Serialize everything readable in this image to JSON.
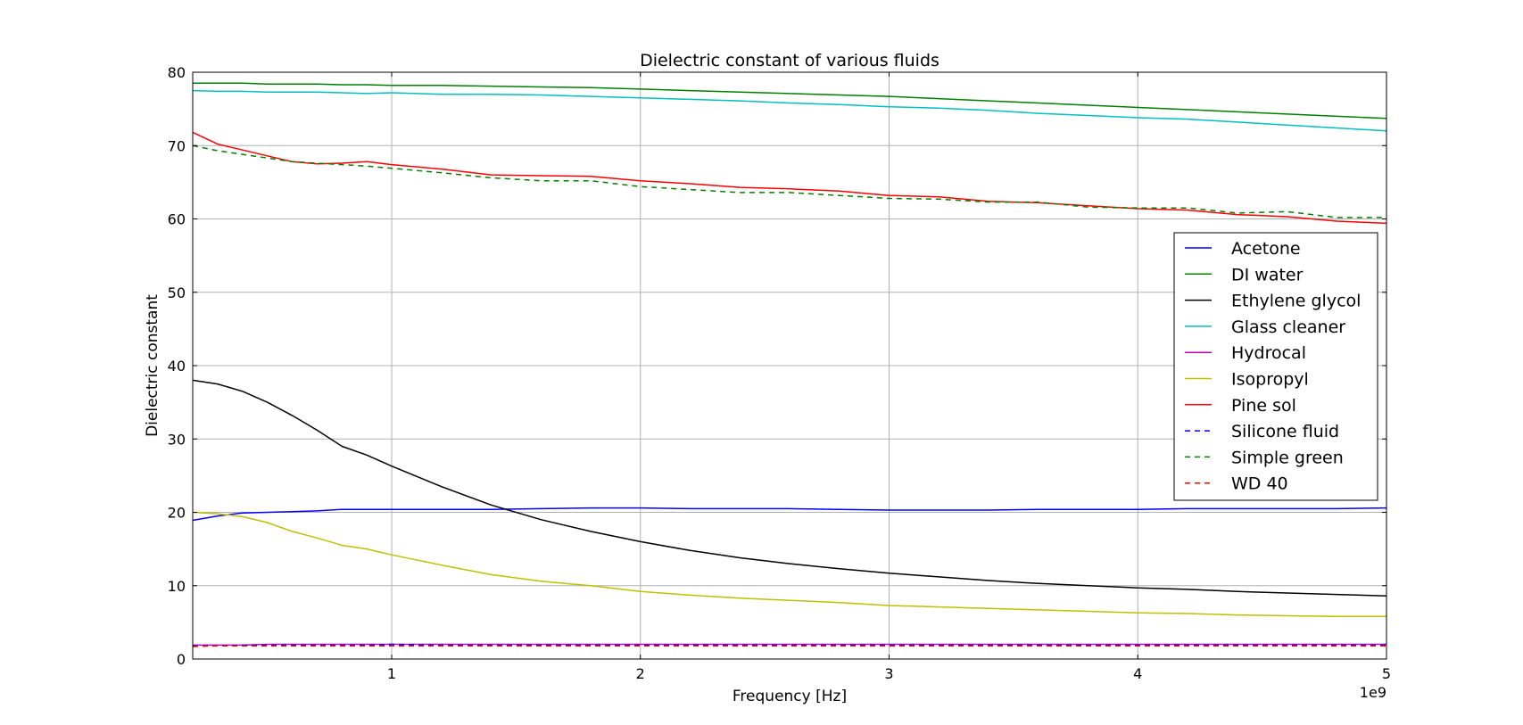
{
  "chart_data": {
    "type": "line",
    "title": "Dielectric constant of various fluids",
    "xlabel": "Frequency [Hz]",
    "ylabel": "Dielectric constant",
    "x_offset_text": "1e9",
    "xlim": [
      0.2,
      5.0
    ],
    "ylim": [
      0,
      80
    ],
    "x_ticks": [
      1,
      2,
      3,
      4,
      5
    ],
    "y_ticks": [
      0,
      10,
      20,
      30,
      40,
      50,
      60,
      70,
      80
    ],
    "grid": true,
    "legend_position": "center-right",
    "x": [
      0.2,
      0.3,
      0.4,
      0.5,
      0.6,
      0.7,
      0.8,
      0.9,
      1.0,
      1.2,
      1.4,
      1.6,
      1.8,
      2.0,
      2.2,
      2.4,
      2.6,
      2.8,
      3.0,
      3.2,
      3.4,
      3.6,
      3.8,
      4.0,
      4.2,
      4.4,
      4.6,
      4.8,
      5.0
    ],
    "series": [
      {
        "name": "Acetone",
        "color": "#0000ff",
        "dash": "solid",
        "values": [
          18.9,
          19.5,
          19.9,
          20.0,
          20.1,
          20.2,
          20.4,
          20.4,
          20.4,
          20.4,
          20.4,
          20.5,
          20.6,
          20.6,
          20.5,
          20.5,
          20.5,
          20.4,
          20.3,
          20.3,
          20.3,
          20.4,
          20.4,
          20.4,
          20.5,
          20.5,
          20.5,
          20.5,
          20.6
        ]
      },
      {
        "name": "DI water",
        "color": "#008000",
        "dash": "solid",
        "values": [
          78.5,
          78.5,
          78.5,
          78.4,
          78.4,
          78.4,
          78.3,
          78.3,
          78.2,
          78.2,
          78.1,
          78.0,
          77.9,
          77.7,
          77.5,
          77.3,
          77.1,
          76.9,
          76.7,
          76.4,
          76.1,
          75.8,
          75.5,
          75.2,
          74.9,
          74.6,
          74.3,
          74.0,
          73.7
        ]
      },
      {
        "name": "Ethylene glycol",
        "color": "#000000",
        "dash": "solid",
        "values": [
          38.0,
          37.5,
          36.5,
          35.0,
          33.2,
          31.2,
          29.0,
          27.8,
          26.3,
          23.5,
          21.0,
          19.0,
          17.4,
          16.0,
          14.8,
          13.8,
          13.0,
          12.3,
          11.7,
          11.2,
          10.7,
          10.3,
          10.0,
          9.7,
          9.5,
          9.2,
          9.0,
          8.8,
          8.6
        ]
      },
      {
        "name": "Glass cleaner",
        "color": "#00bfbf",
        "dash": "solid",
        "values": [
          77.5,
          77.4,
          77.4,
          77.3,
          77.3,
          77.3,
          77.2,
          77.1,
          77.2,
          77.0,
          77.0,
          76.9,
          76.7,
          76.5,
          76.3,
          76.1,
          75.8,
          75.6,
          75.3,
          75.1,
          74.8,
          74.4,
          74.1,
          73.8,
          73.6,
          73.2,
          72.8,
          72.4,
          72.0
        ]
      },
      {
        "name": "Hydrocal",
        "color": "#bf00bf",
        "dash": "solid",
        "values": [
          1.9,
          1.9,
          1.9,
          2.0,
          2.0,
          2.0,
          2.0,
          2.0,
          2.0,
          2.0,
          2.0,
          2.0,
          2.0,
          2.0,
          2.0,
          2.0,
          2.0,
          2.0,
          2.0,
          2.0,
          2.0,
          2.0,
          2.0,
          2.0,
          2.0,
          2.0,
          2.0,
          2.0,
          2.0
        ]
      },
      {
        "name": "Isopropyl",
        "color": "#bfbf00",
        "dash": "solid",
        "values": [
          20.0,
          19.8,
          19.4,
          18.6,
          17.4,
          16.5,
          15.5,
          15.0,
          14.2,
          12.8,
          11.5,
          10.6,
          10.0,
          9.2,
          8.7,
          8.3,
          8.0,
          7.7,
          7.3,
          7.1,
          6.9,
          6.7,
          6.5,
          6.3,
          6.2,
          6.0,
          5.9,
          5.8,
          5.8
        ]
      },
      {
        "name": "Pine sol",
        "color": "#ff0000",
        "dash": "solid",
        "values": [
          71.8,
          70.2,
          69.4,
          68.6,
          67.8,
          67.5,
          67.6,
          67.8,
          67.4,
          66.8,
          66.0,
          65.9,
          65.8,
          65.2,
          64.8,
          64.3,
          64.1,
          63.8,
          63.2,
          63.0,
          62.4,
          62.2,
          61.8,
          61.4,
          61.2,
          60.6,
          60.3,
          59.7,
          59.4
        ]
      },
      {
        "name": "Silicone fluid",
        "color": "#0000ff",
        "dash": "dashed",
        "values": [
          1.8,
          1.8,
          1.9,
          1.9,
          1.9,
          1.9,
          1.9,
          1.9,
          2.0,
          1.9,
          1.9,
          1.9,
          1.9,
          1.9,
          1.9,
          1.9,
          1.9,
          1.9,
          1.9,
          1.9,
          1.9,
          1.9,
          1.9,
          1.9,
          1.9,
          1.9,
          1.9,
          1.9,
          1.9
        ]
      },
      {
        "name": "Simple green",
        "color": "#008000",
        "dash": "dashed",
        "values": [
          70.0,
          69.3,
          68.8,
          68.3,
          67.8,
          67.6,
          67.4,
          67.2,
          66.9,
          66.3,
          65.6,
          65.2,
          65.2,
          64.4,
          64.0,
          63.6,
          63.6,
          63.2,
          62.8,
          62.7,
          62.3,
          62.3,
          61.6,
          61.5,
          61.5,
          60.8,
          61.0,
          60.2,
          60.2
        ]
      },
      {
        "name": "WD 40",
        "color": "#ff0000",
        "dash": "dashed",
        "values": [
          1.7,
          1.8,
          1.8,
          1.8,
          1.8,
          1.8,
          1.8,
          1.8,
          1.8,
          1.8,
          1.8,
          1.8,
          1.8,
          1.8,
          1.8,
          1.8,
          1.8,
          1.8,
          1.8,
          1.8,
          1.8,
          1.8,
          1.8,
          1.8,
          1.8,
          1.8,
          1.8,
          1.8,
          1.8
        ]
      }
    ]
  }
}
